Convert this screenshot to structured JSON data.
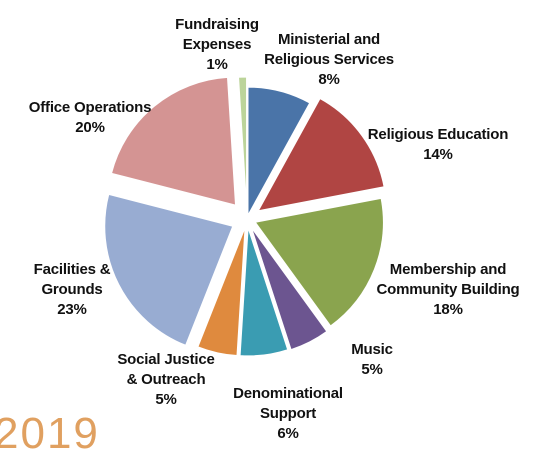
{
  "chart_data": {
    "type": "pie",
    "title": "",
    "exploded": true,
    "start_angle_deg": 0,
    "direction": "clockwise",
    "slices": [
      {
        "label": "Ministerial and Religious Services",
        "label_lines": [
          "Ministerial and",
          "Religious Services"
        ],
        "value": 8,
        "pct_label": "8%",
        "color": "#4a74a8"
      },
      {
        "label": "Religious Education",
        "label_lines": [
          "Religious Education"
        ],
        "value": 14,
        "pct_label": "14%",
        "color": "#b04543"
      },
      {
        "label": "Membership and Community Building",
        "label_lines": [
          "Membership and",
          "Community Building"
        ],
        "value": 18,
        "pct_label": "18%",
        "color": "#8aa44e"
      },
      {
        "label": "Music",
        "label_lines": [
          "Music"
        ],
        "value": 5,
        "pct_label": "5%",
        "color": "#6c5590"
      },
      {
        "label": "Denominational Support",
        "label_lines": [
          "Denominational",
          "Support"
        ],
        "value": 6,
        "pct_label": "6%",
        "color": "#3a9cb2"
      },
      {
        "label": "Social Justice & Outreach",
        "label_lines": [
          "Social Justice",
          "& Outreach"
        ],
        "value": 5,
        "pct_label": "5%",
        "color": "#df8a3e"
      },
      {
        "label": "Facilities & Grounds",
        "label_lines": [
          "Facilities &",
          "Grounds"
        ],
        "value": 23,
        "pct_label": "23%",
        "color": "#98acd2"
      },
      {
        "label": "Office Operations",
        "label_lines": [
          "Office Operations"
        ],
        "value": 20,
        "pct_label": "20%",
        "color": "#d49493"
      },
      {
        "label": "Fundraising Expenses",
        "label_lines": [
          "Fundraising",
          "Expenses"
        ],
        "value": 1,
        "pct_label": "1%",
        "color": "#bcd49a"
      }
    ]
  },
  "year_stamp": "2019"
}
